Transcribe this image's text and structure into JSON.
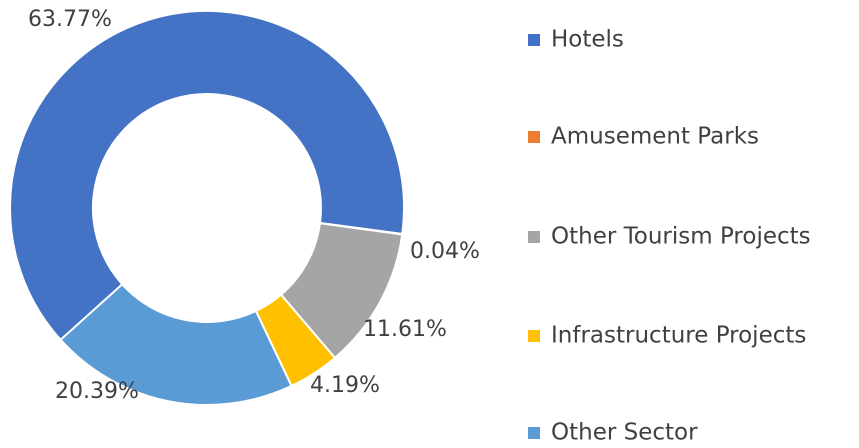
{
  "chart_data": {
    "type": "donut",
    "categories": [
      "Hotels",
      "Amusement Parks",
      "Other Tourism Projects",
      "Infrastructure Projects",
      "Other Sector"
    ],
    "values": [
      63.77,
      0.04,
      11.61,
      4.19,
      20.39
    ],
    "value_labels": [
      "63.77%",
      "0.04%",
      "11.61%",
      "4.19%",
      "20.39%"
    ],
    "colors": [
      "#4472c4",
      "#ed7d31",
      "#a5a5a5",
      "#ffc000",
      "#5b9bd5"
    ],
    "legend": "right"
  }
}
